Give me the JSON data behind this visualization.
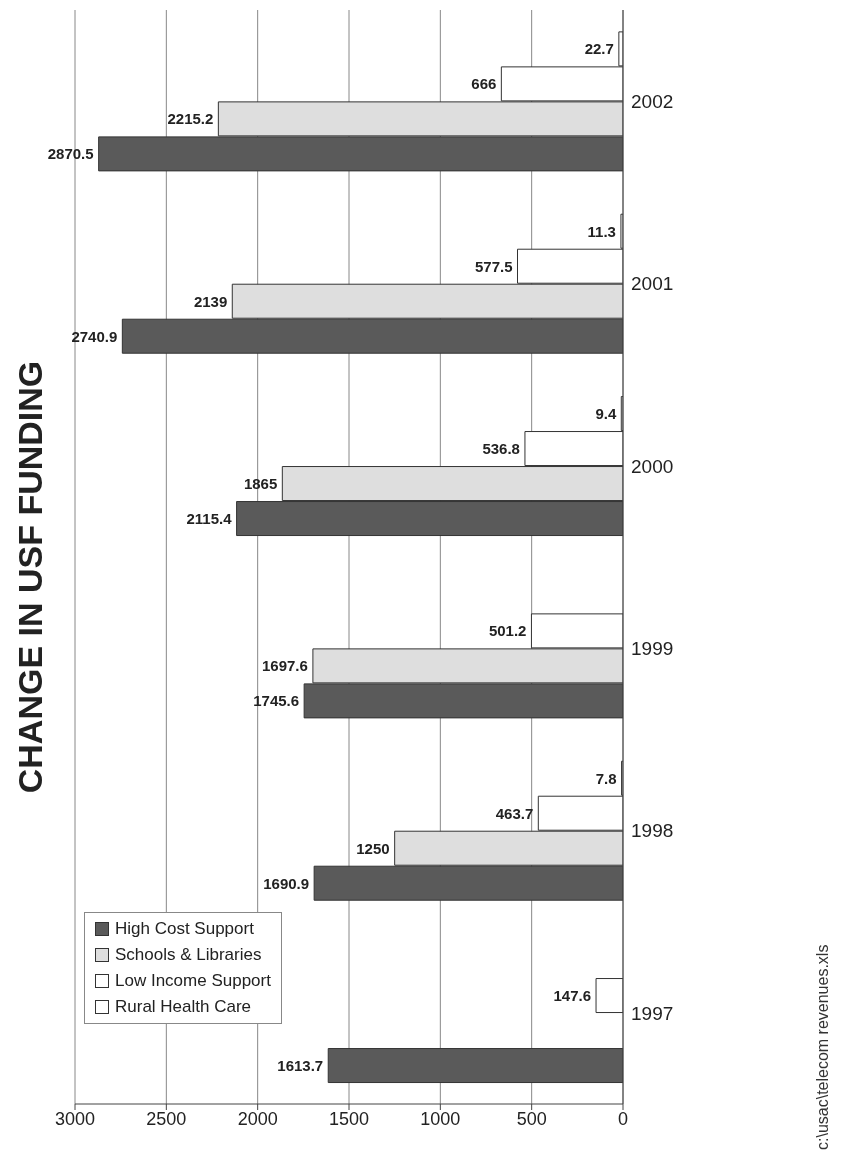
{
  "chart_data": {
    "type": "bar",
    "orientation": "horizontal",
    "title": "CHANGE IN USF FUNDING",
    "categories": [
      "2002",
      "2001",
      "2000",
      "1999",
      "1998",
      "1997"
    ],
    "series": [
      {
        "name": "High Cost Support",
        "color": "#5a5a5a",
        "values": [
          2870.5,
          2740.9,
          2115.4,
          1745.6,
          1690.9,
          1613.7
        ]
      },
      {
        "name": "Schools & Libraries",
        "color": "#dedede",
        "values": [
          2215.2,
          2139,
          1865,
          1697.6,
          1250,
          null
        ]
      },
      {
        "name": "Low Income Support",
        "color": "#ffffff",
        "values": [
          666,
          577.5,
          536.8,
          501.2,
          463.7,
          147.6
        ]
      },
      {
        "name": "Rural Health Care",
        "color": "#ffffff",
        "values": [
          22.7,
          11.3,
          9.4,
          null,
          7.8,
          null
        ]
      }
    ],
    "xlim": [
      3000,
      0
    ],
    "xticks": [
      3000,
      2500,
      2000,
      1500,
      1000,
      500,
      0
    ],
    "grid": "x",
    "legend": "bottom left",
    "data_labels": true,
    "annotations": [
      "c:\\usac\\telecom revenues.xls"
    ]
  }
}
